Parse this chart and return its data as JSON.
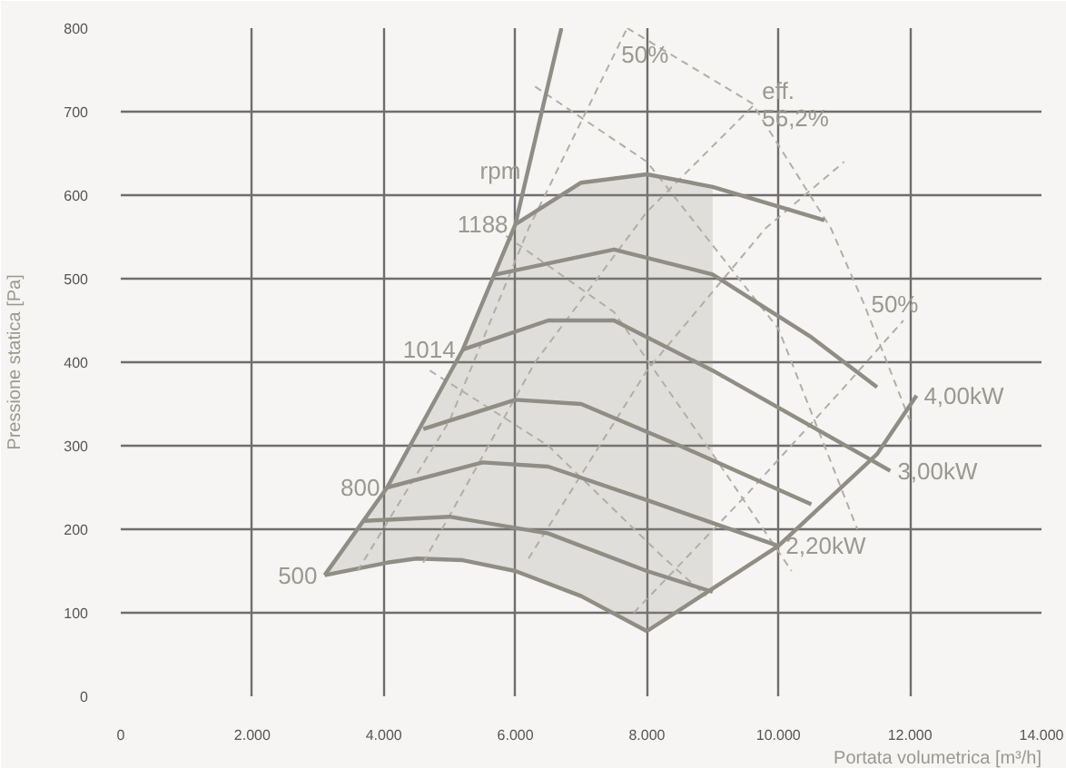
{
  "chart_data": {
    "type": "line",
    "xlabel": "Portata volumetrica [m³/h]",
    "ylabel": "Pressione statica [Pa]",
    "xlim": [
      0,
      14000
    ],
    "ylim": [
      0,
      800
    ],
    "xticks": [
      0,
      {
        "value": 2000,
        "label": "2.000"
      },
      {
        "value": 4000,
        "label": "4.000"
      },
      {
        "value": 6000,
        "label": "6.000"
      },
      {
        "value": 8000,
        "label": "8.000"
      },
      {
        "value": 10000,
        "label": "10.000"
      },
      {
        "value": 12000,
        "label": "12.000"
      },
      {
        "value": 14000,
        "label": "14.000"
      }
    ],
    "yticks": [
      0,
      100,
      200,
      300,
      400,
      500,
      600,
      700,
      800
    ],
    "grid": true,
    "marker": "none",
    "line_style": "solid",
    "series": [
      {
        "name": "500",
        "color": "#8f8d84",
        "x": [
          3100,
          4050,
          4500,
          5200,
          6000,
          7000,
          8000,
          9000
        ],
        "values": [
          145,
          160,
          165,
          163,
          150,
          120,
          78,
          null
        ],
        "lower": [
          145,
          160,
          165,
          163,
          150,
          120,
          78,
          128
        ],
        "upper": [
          145,
          250,
          315,
          415,
          565,
          615,
          625,
          610
        ]
      },
      {
        "color": "#b0aea6",
        "line_style": "dashed",
        "x": [
          3600,
          5000,
          6200,
          7700
        ],
        "values": [
          150,
          330,
          560,
          800
        ]
      },
      {
        "color": "#b0aea6",
        "line_style": "dashed",
        "x": [
          4600,
          6300,
          8000,
          9640
        ],
        "values": [
          160,
          400,
          580,
          709
        ]
      },
      {
        "color": "#b0aea6",
        "line_style": "dashed",
        "x": [
          6200,
          8000,
          9800,
          11000
        ],
        "values": [
          165,
          390,
          560,
          640
        ]
      },
      {
        "color": "#b0aea6",
        "line_style": "dashed",
        "x": [
          7800,
          9500,
          11000,
          11900
        ],
        "values": [
          100,
          240,
          370,
          450
        ]
      },
      {
        "color": "#b0aea6",
        "line_style": "dashed",
        "x": [
          7700,
          9600,
          10800,
          11300,
          12000
        ],
        "values": [
          800,
          710,
          560,
          470,
          330
        ]
      },
      {
        "color": "#b0aea6",
        "line_style": "dashed",
        "x": [
          6300,
          8000,
          10000,
          11200
        ],
        "values": [
          730,
          640,
          440,
          200
        ]
      },
      {
        "color": "#b0aea6",
        "line_style": "dashed",
        "x": [
          5700,
          7500,
          9000,
          10200
        ],
        "values": [
          560,
          460,
          290,
          150
        ]
      },
      {
        "color": "#b0aea6",
        "line_style": "dashed",
        "x": [
          4700,
          6500,
          8200,
          8900
        ],
        "values": [
          390,
          300,
          170,
          120
        ]
      },
      {
        "color": "#8f8d84",
        "x": [
          3700,
          5000,
          6500,
          8000,
          9000
        ],
        "values": [
          210,
          215,
          195,
          150,
          125
        ]
      },
      {
        "name": "800",
        "color": "#8f8d84",
        "x": [
          4050,
          5500,
          6500,
          8000,
          10000
        ],
        "values": [
          250,
          280,
          275,
          235,
          180
        ]
      },
      {
        "color": "#8f8d84",
        "x": [
          4600,
          6000,
          7000,
          8500,
          10500
        ],
        "values": [
          320,
          355,
          350,
          300,
          230
        ]
      },
      {
        "name": "1014",
        "color": "#8f8d84",
        "x": [
          5200,
          6500,
          7500,
          9000,
          11700
        ],
        "values": [
          415,
          450,
          450,
          390,
          270
        ]
      },
      {
        "color": "#8f8d84",
        "x": [
          5700,
          7500,
          9000,
          10500,
          11500
        ],
        "values": [
          505,
          535,
          505,
          430,
          370
        ]
      },
      {
        "name": "1188",
        "color": "#8f8d84",
        "x": [
          6000,
          7000,
          8000,
          9000,
          10700
        ],
        "values": [
          565,
          615,
          625,
          610,
          570
        ]
      },
      {
        "color": "#8f8d84",
        "x": [
          3100,
          4050,
          5200,
          6000,
          6190,
          6700
        ],
        "values": [
          145,
          250,
          415,
          565,
          629,
          800
        ]
      },
      {
        "color": "#8f8d84",
        "x": [
          8000,
          10000,
          11500,
          12100
        ],
        "values": [
          78,
          180,
          290,
          360
        ]
      }
    ],
    "annotations": [
      {
        "text": "rpm",
        "x": 6190,
        "y": 629
      },
      {
        "text": "50%",
        "x": 7500,
        "y": 768
      },
      {
        "text": "eff.\n56,2%",
        "x": 9640,
        "y": 709
      },
      {
        "text": "50%",
        "x": 11300,
        "y": 470
      },
      {
        "text": "4,00kW",
        "x": 12100,
        "y": 360
      },
      {
        "text": "3,00kW",
        "x": 11700,
        "y": 270
      },
      {
        "text": "2,20kW",
        "x": 10000,
        "y": 180
      }
    ]
  }
}
